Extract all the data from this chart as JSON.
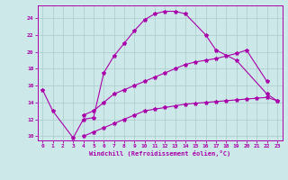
{
  "xlabel": "Windchill (Refroidissement éolien,°C)",
  "background_color": "#cce8e8",
  "line_color": "#aa00aa",
  "xlim": [
    -0.5,
    23.5
  ],
  "ylim": [
    9.5,
    25.5
  ],
  "yticks": [
    10,
    12,
    14,
    16,
    18,
    20,
    22,
    24
  ],
  "xticks": [
    0,
    1,
    2,
    3,
    4,
    5,
    6,
    7,
    8,
    9,
    10,
    11,
    12,
    13,
    14,
    15,
    16,
    17,
    18,
    19,
    20,
    21,
    22,
    23
  ],
  "grid_color": "#aacccc",
  "series": [
    {
      "x": [
        0,
        1,
        3,
        4,
        5,
        6,
        7,
        8,
        9,
        10,
        11,
        12,
        13,
        14,
        16,
        17,
        19,
        22,
        23
      ],
      "y": [
        15.5,
        13,
        9.8,
        12,
        12.2,
        17.5,
        19.5,
        21.0,
        22.5,
        23.8,
        24.5,
        24.8,
        24.8,
        24.5,
        22.0,
        20.2,
        19.0,
        15.0,
        14.2
      ]
    },
    {
      "x": [
        4,
        5,
        6,
        7,
        8,
        9,
        10,
        11,
        12,
        13,
        14,
        15,
        16,
        17,
        18,
        19,
        20,
        22
      ],
      "y": [
        12.5,
        13,
        14,
        15,
        15.5,
        16,
        16.5,
        17,
        17.5,
        18,
        18.5,
        18.8,
        19,
        19.2,
        19.5,
        19.8,
        20.2,
        16.5
      ]
    },
    {
      "x": [
        4,
        5,
        6,
        7,
        8,
        9,
        10,
        11,
        12,
        13,
        14,
        15,
        16,
        17,
        18,
        19,
        20,
        21,
        22,
        23
      ],
      "y": [
        10.0,
        10.5,
        11.0,
        11.5,
        12.0,
        12.5,
        13.0,
        13.2,
        13.4,
        13.6,
        13.8,
        13.9,
        14.0,
        14.1,
        14.2,
        14.3,
        14.4,
        14.5,
        14.6,
        14.2
      ]
    }
  ]
}
